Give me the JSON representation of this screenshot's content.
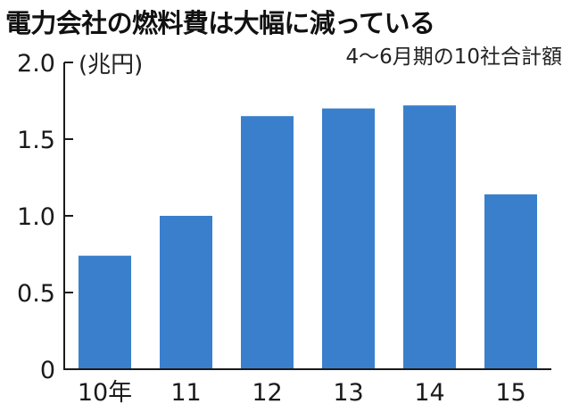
{
  "chart_data": {
    "type": "bar",
    "title": "電力会社の燃料費は大幅に減っている",
    "subtitle": "4〜6月期の10社合計額",
    "ylabel": "(兆円)",
    "xlabel": "",
    "categories": [
      "10年",
      "11",
      "12",
      "13",
      "14",
      "15"
    ],
    "values": [
      0.74,
      1.0,
      1.65,
      1.7,
      1.72,
      1.14
    ],
    "ylim": [
      0,
      2.0
    ],
    "yticks": [
      "0",
      "0.5",
      "1.0",
      "1.5",
      "2.0"
    ],
    "ytick_values": [
      0,
      0.5,
      1.0,
      1.5,
      2.0
    ],
    "grid": false,
    "bar_color": "#3a7fcc",
    "axis_color": "#1a1a1a"
  }
}
